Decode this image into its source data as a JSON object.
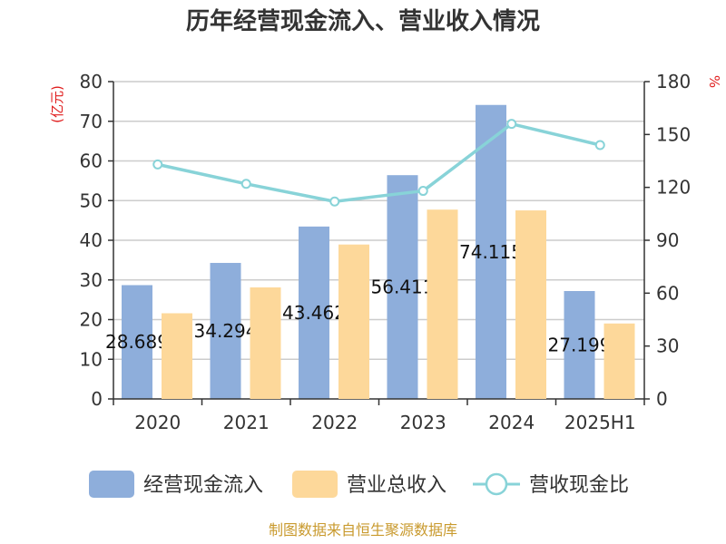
{
  "chart_data": {
    "type": "bar",
    "title": "历年经营现金流入、营业收入情况",
    "categories": [
      "2020",
      "2021",
      "2022",
      "2023",
      "2024",
      "2025H1"
    ],
    "left_axis": {
      "unit": "(亿元)",
      "ylim": [
        0,
        80
      ],
      "ticks": [
        0,
        10,
        20,
        30,
        40,
        50,
        60,
        70,
        80
      ]
    },
    "right_axis": {
      "unit": "%",
      "ylim": [
        0,
        180
      ],
      "ticks": [
        0,
        30,
        60,
        90,
        120,
        150,
        180
      ]
    },
    "series": [
      {
        "name": "经营现金流入",
        "kind": "bar",
        "axis": "left",
        "color": "#8eaedb",
        "values": [
          28.689,
          34.294,
          43.462,
          56.411,
          74.115,
          27.199
        ],
        "labels": [
          "28.689",
          "34.294",
          "43.462",
          "56.411",
          "74.115",
          "27.199"
        ]
      },
      {
        "name": "营业总收入",
        "kind": "bar",
        "axis": "left",
        "color": "#fdd89a",
        "values": [
          21.6,
          28.1,
          38.9,
          47.7,
          47.5,
          19.0
        ]
      },
      {
        "name": "营收现金比",
        "kind": "line",
        "axis": "right",
        "color": "#88d3d8",
        "values": [
          133,
          122,
          112,
          118,
          156,
          144
        ]
      }
    ],
    "grid": true,
    "legend_position": "bottom"
  },
  "source_note": "制图数据来自恒生聚源数据库"
}
